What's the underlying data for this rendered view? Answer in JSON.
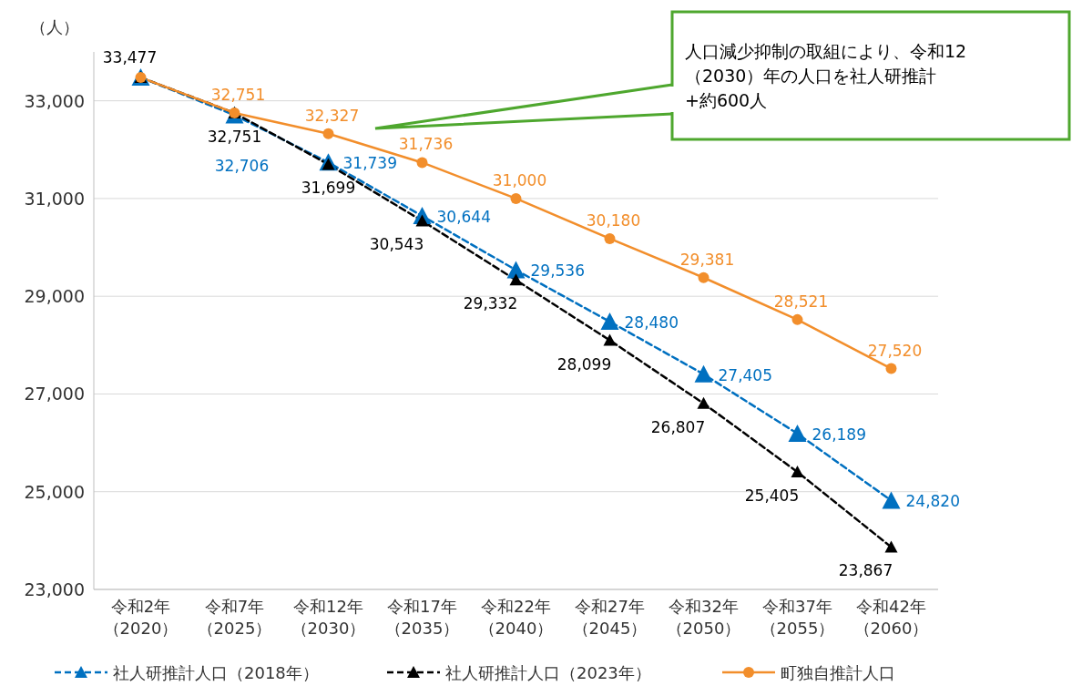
{
  "chart_data": {
    "type": "line",
    "ylabel": "（人）",
    "categories": [
      "令和2年（2020）",
      "令和7年（2025）",
      "令和12年（2030）",
      "令和17年（2035）",
      "令和22年（2040）",
      "令和27年（2045）",
      "令和32年（2050）",
      "令和37年（2055）",
      "令和42年（2060）"
    ],
    "ylim": [
      23000,
      34000
    ],
    "yticks": [
      {
        "value": 23000,
        "label": "23,000"
      },
      {
        "value": 25000,
        "label": "25,000"
      },
      {
        "value": 27000,
        "label": "27,000"
      },
      {
        "value": 29000,
        "label": "29,000"
      },
      {
        "value": 31000,
        "label": "31,000"
      },
      {
        "value": 33000,
        "label": "33,000"
      }
    ],
    "grid": "y",
    "legend": "bottom",
    "series": [
      {
        "name": "社人研推計人口（2018年）",
        "color": "#0070c0",
        "marker": "triangle",
        "line_style": "dashed",
        "values": [
          33477,
          32706,
          31739,
          30644,
          29536,
          28480,
          27405,
          26189,
          24820
        ],
        "value_labels": [
          null,
          "32,706",
          "31,739",
          "30,644",
          "29,536",
          "28,480",
          "27,405",
          "26,189",
          "24,820"
        ]
      },
      {
        "name": "社人研推計人口（2023年）",
        "color": "#000000",
        "marker": "triangle",
        "line_style": "dashed",
        "values": [
          33477,
          32751,
          31699,
          30543,
          29332,
          28099,
          26807,
          25405,
          23867
        ],
        "value_labels": [
          "33,477",
          "32,751",
          "31,699",
          "30,543",
          "29,332",
          "28,099",
          "26,807",
          "25,405",
          "23,867"
        ]
      },
      {
        "name": "町独自推計人口",
        "color": "#f28e2b",
        "marker": "circle",
        "line_style": "solid",
        "values": [
          33477,
          32751,
          32327,
          31736,
          31000,
          30180,
          29381,
          28521,
          27520
        ],
        "value_labels": [
          null,
          "32,751",
          "32,327",
          "31,736",
          "31,000",
          "30,180",
          "29,381",
          "28,521",
          "27,520"
        ]
      }
    ],
    "annotations": [
      "人口減少抑制の取組により、令和12（2030）年の人口を社人研推計+約600人"
    ]
  }
}
